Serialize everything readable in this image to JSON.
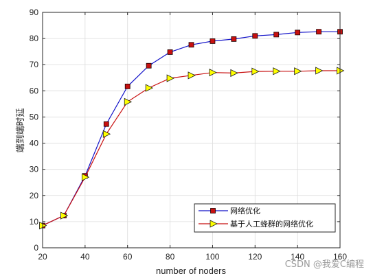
{
  "chart_data": {
    "type": "line",
    "xlabel": "number of noders",
    "ylabel": "端到端时延",
    "xlim": [
      20,
      160
    ],
    "ylim": [
      0,
      90
    ],
    "xticks": [
      20,
      40,
      60,
      80,
      100,
      120,
      140,
      160
    ],
    "yticks": [
      0,
      10,
      20,
      30,
      40,
      50,
      60,
      70,
      80,
      90
    ],
    "grid": true,
    "legend_position": "bottom-right",
    "x": [
      20,
      30,
      40,
      50,
      60,
      70,
      80,
      90,
      100,
      110,
      120,
      130,
      140,
      150,
      160
    ],
    "series": [
      {
        "name": "网络优化",
        "color": "#1010c8",
        "marker": "square",
        "marker_color": "#c81010",
        "values": [
          8.5,
          12.3,
          27.5,
          47.3,
          61.7,
          69.6,
          74.8,
          77.6,
          79.0,
          79.8,
          81.0,
          81.5,
          82.3,
          82.6,
          82.6
        ]
      },
      {
        "name": "基于人工蜂群的网络优化",
        "color": "#c81010",
        "marker": "triangle-right",
        "marker_color": "#ffff00",
        "values": [
          8.5,
          12.3,
          27.0,
          43.5,
          55.8,
          61.1,
          64.8,
          65.9,
          67.0,
          66.8,
          67.4,
          67.5,
          67.5,
          67.7,
          67.7
        ]
      }
    ]
  },
  "watermark": "CSDN @我爱C编程"
}
